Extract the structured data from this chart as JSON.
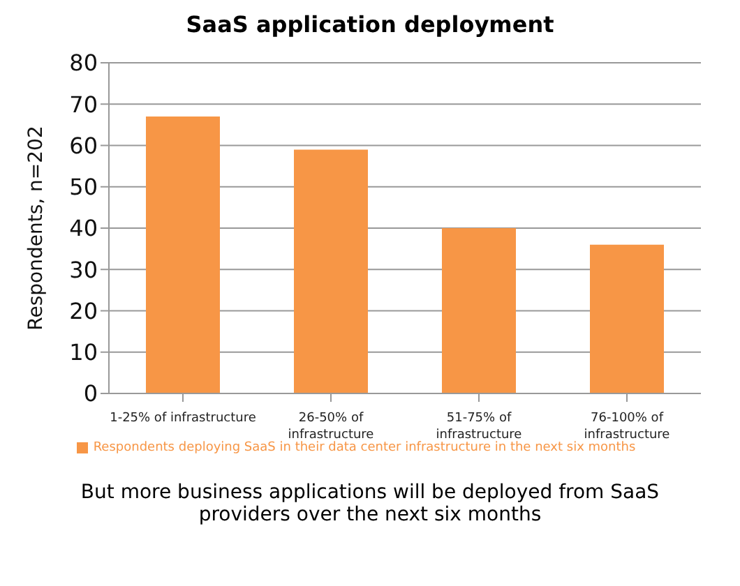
{
  "chart_data": {
    "type": "bar",
    "title": "SaaS application deployment",
    "ylabel": "Respondents, n=202",
    "categories": [
      "1-25% of infrastructure",
      "26-50% of infrastructure",
      "51-75% of infrastructure",
      "76-100% of infrastructure"
    ],
    "series": [
      {
        "name": "Respondents deploying SaaS in their data center infrastructure in the next six months",
        "color": "#f79646",
        "values": [
          67,
          59,
          40,
          36
        ]
      }
    ],
    "ylim": [
      0,
      80
    ],
    "yticks": [
      0,
      10,
      20,
      30,
      40,
      50,
      60,
      70,
      80
    ],
    "grid": "y",
    "legend": "bottom",
    "annotations": [
      "But more business applications will be deployed from SaaS providers over the next six months"
    ]
  }
}
